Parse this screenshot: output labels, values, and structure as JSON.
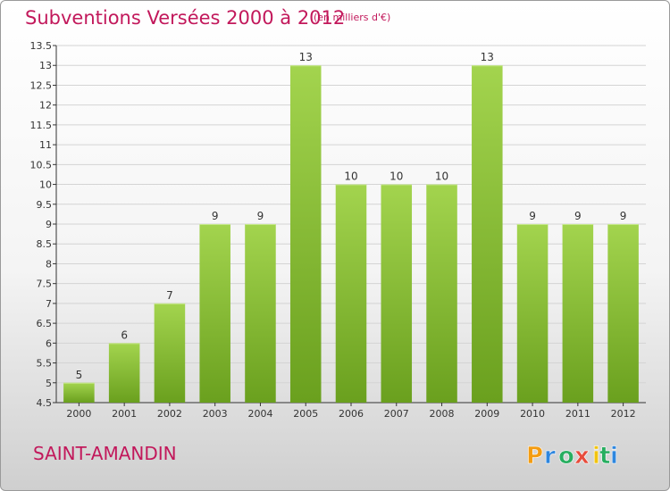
{
  "chart_data": {
    "type": "bar",
    "title": "Subventions Versées 2000 à 2012",
    "subtitle": "(en milliers d'€)",
    "categories": [
      "2000",
      "2001",
      "2002",
      "2003",
      "2004",
      "2005",
      "2006",
      "2007",
      "2008",
      "2009",
      "2010",
      "2011",
      "2012"
    ],
    "values": [
      5,
      6,
      7,
      9,
      9,
      13,
      10,
      10,
      10,
      13,
      9,
      9,
      9
    ],
    "data_labels": [
      "5",
      "6",
      "7",
      "9",
      "9",
      "13",
      "10",
      "10",
      "10",
      "13",
      "9",
      "9",
      "9"
    ],
    "xlabel": "",
    "ylabel": "",
    "ylim": [
      4.5,
      13.5
    ],
    "yticks": [
      "4.5",
      "5",
      "5.5",
      "6",
      "6.5",
      "7",
      "7.5",
      "8",
      "8.5",
      "9",
      "9.5",
      "10",
      "10.5",
      "11",
      "11.5",
      "12",
      "12.5",
      "13",
      "13.5"
    ],
    "grid": true,
    "bar_color": "#8cc43c"
  },
  "place_name": "SAINT-AMANDIN",
  "brand": {
    "name": "Proxiti",
    "letters": [
      "P",
      "r",
      "o",
      "x",
      "i",
      "t",
      "i"
    ],
    "colors": [
      "#f39c12",
      "#2e86de",
      "#27ae60",
      "#e74c3c",
      "#f1c40f",
      "#27ae60",
      "#2e86de"
    ]
  },
  "colors": {
    "title": "#c2185b",
    "grid": "#d4d4d4",
    "axis": "#333333"
  }
}
